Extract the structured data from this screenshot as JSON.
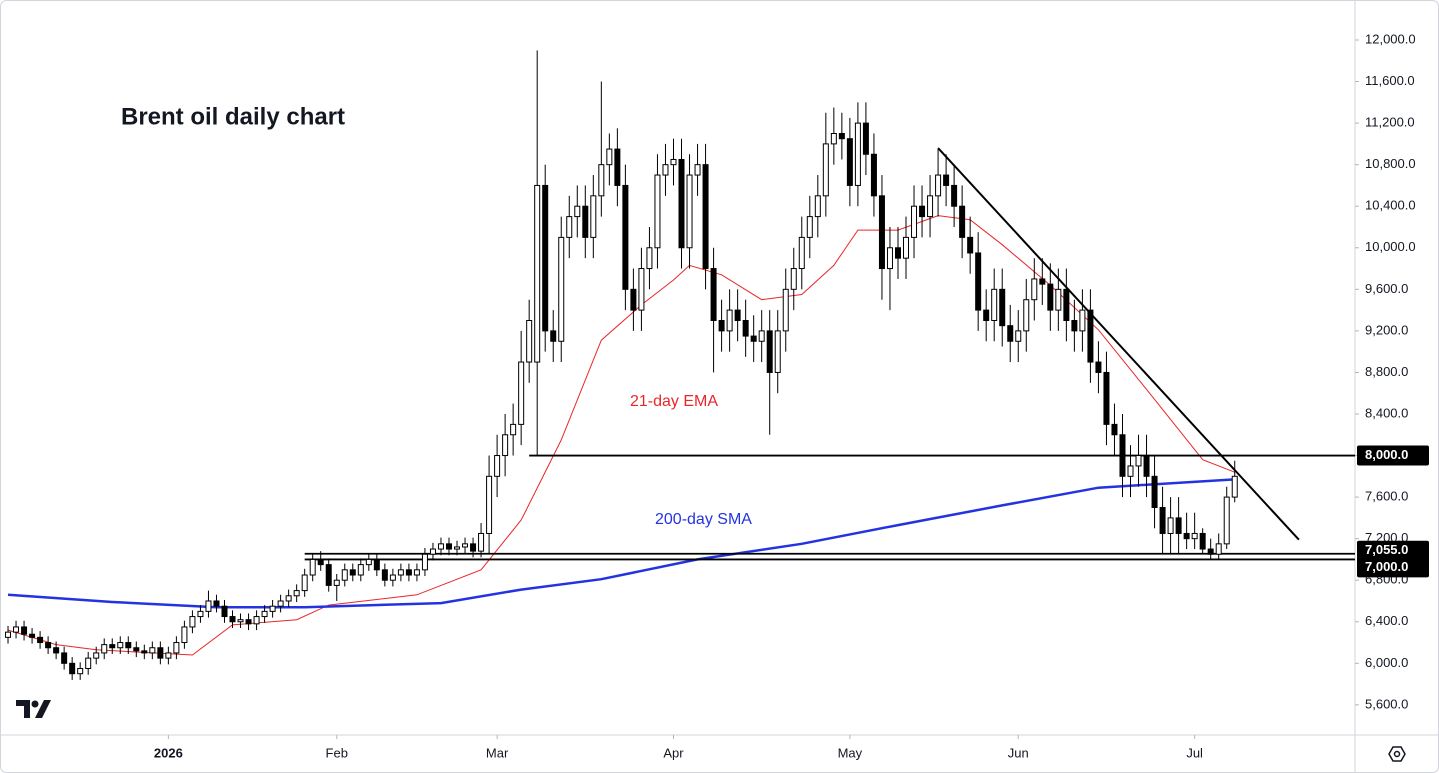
{
  "chart_data": {
    "type": "candlestick",
    "title": "Brent oil daily chart",
    "open": [
      6250,
      6300,
      6350,
      6280,
      6250,
      6200,
      6150,
      6100,
      6000,
      5900,
      5950,
      6050,
      6100,
      6180,
      6150,
      6200,
      6150,
      6120,
      6100,
      6150,
      6050,
      6100,
      6200,
      6350,
      6450,
      6500,
      6600,
      6550,
      6450,
      6400,
      6420,
      6380,
      6450,
      6500,
      6550,
      6600,
      6650,
      6700,
      6850,
      7000,
      6950,
      6750,
      6800,
      6900,
      6850,
      6950,
      7000,
      6900,
      6800,
      6850,
      6900,
      6850,
      6900,
      7050,
      7100,
      7150,
      7100,
      7120,
      7150,
      7080,
      7250,
      7800,
      8000,
      8200,
      8300,
      8900,
      8900,
      10600,
      9200,
      9100,
      10100,
      10300,
      10400,
      10100,
      10500,
      10800,
      10950,
      10600,
      9600,
      9400,
      9800,
      10000,
      10700,
      10800,
      10850,
      10000,
      10700,
      10800,
      9800,
      9300,
      9200,
      9400,
      9300,
      9150,
      9100,
      9200,
      8800,
      9200,
      9600,
      9800,
      10100,
      10300,
      10500,
      11000,
      11100,
      11050,
      10600,
      11200,
      10900,
      10500,
      9800,
      10000,
      9900,
      10100,
      10400,
      10300,
      10500,
      10700,
      10600,
      10400,
      10100,
      9950,
      9400,
      9300,
      9600,
      9250,
      9100,
      9200,
      9500,
      9700,
      9650,
      9400,
      9600,
      9300,
      9200,
      9400,
      8900,
      8800,
      8300,
      8200,
      7800,
      7900,
      8000,
      7800,
      7500,
      7250,
      7400,
      7250,
      7200,
      7250,
      7100,
      7050,
      7150,
      7600
    ],
    "high": [
      6360,
      6410,
      6410,
      6340,
      6310,
      6260,
      6210,
      6160,
      6060,
      6010,
      6110,
      6160,
      6240,
      6240,
      6260,
      6260,
      6210,
      6180,
      6210,
      6210,
      6160,
      6260,
      6410,
      6510,
      6560,
      6700,
      6660,
      6610,
      6510,
      6480,
      6480,
      6510,
      6560,
      6610,
      6660,
      6710,
      6760,
      6910,
      7060,
      7080,
      7010,
      6860,
      6960,
      6960,
      7010,
      7060,
      7060,
      6960,
      6910,
      6960,
      6960,
      6960,
      7110,
      7160,
      7210,
      7210,
      7180,
      7210,
      7210,
      7350,
      8000,
      8200,
      8400,
      8500,
      9200,
      9500,
      11900,
      10800,
      9400,
      10300,
      10500,
      10600,
      10600,
      10700,
      11600,
      11100,
      11150,
      10800,
      9800,
      10000,
      10200,
      10900,
      11000,
      11050,
      11050,
      10900,
      11000,
      11000,
      10000,
      9500,
      9600,
      9600,
      9500,
      9350,
      9400,
      9400,
      9400,
      9800,
      10000,
      10300,
      10500,
      10700,
      11300,
      11350,
      11300,
      11250,
      11400,
      11400,
      11100,
      10700,
      10200,
      10200,
      10300,
      10600,
      10600,
      10700,
      10950,
      10900,
      10800,
      10600,
      10300,
      10150,
      9600,
      9800,
      9800,
      9450,
      9400,
      9700,
      9900,
      9900,
      9850,
      9800,
      9800,
      9500,
      9600,
      9600,
      9100,
      9000,
      8500,
      8400,
      8100,
      8200,
      8200,
      8000,
      7700,
      7600,
      7600,
      7450,
      7450,
      7300,
      7200,
      7250,
      7700,
      7950
    ],
    "low": [
      6190,
      6240,
      6220,
      6190,
      6140,
      6090,
      6040,
      5940,
      5840,
      5840,
      5890,
      5990,
      6040,
      6090,
      6090,
      6090,
      6060,
      6040,
      6040,
      5990,
      5990,
      6040,
      6140,
      6290,
      6390,
      6440,
      6490,
      6390,
      6340,
      6340,
      6320,
      6320,
      6390,
      6440,
      6490,
      6540,
      6590,
      6640,
      6790,
      6890,
      6690,
      6600,
      6740,
      6790,
      6790,
      6890,
      6840,
      6740,
      6740,
      6790,
      6790,
      6790,
      6840,
      6990,
      7040,
      7040,
      7040,
      7060,
      7020,
      7020,
      7050,
      7600,
      7800,
      8000,
      8100,
      8700,
      8000,
      9000,
      8900,
      8900,
      9900,
      10100,
      9900,
      9900,
      10300,
      10600,
      10400,
      9400,
      9200,
      9200,
      9600,
      9800,
      10500,
      10600,
      9800,
      9800,
      10500,
      9600,
      8800,
      9000,
      9000,
      9100,
      8950,
      8900,
      8900,
      8200,
      8600,
      9000,
      9400,
      9600,
      9900,
      10100,
      10300,
      10800,
      10850,
      10400,
      10400,
      10700,
      10300,
      9500,
      9400,
      9700,
      9700,
      9900,
      10100,
      10100,
      10300,
      10400,
      10200,
      9900,
      9750,
      9200,
      9100,
      9100,
      9050,
      8900,
      8900,
      9000,
      9300,
      9450,
      9200,
      9200,
      9100,
      9000,
      9000,
      8700,
      8600,
      8100,
      8000,
      7600,
      7600,
      7700,
      7600,
      7300,
      7050,
      7050,
      7050,
      7100,
      7100,
      7050,
      7000,
      7000,
      7100,
      7550
    ],
    "close": [
      6300,
      6350,
      6280,
      6250,
      6200,
      6150,
      6100,
      6000,
      5900,
      5950,
      6050,
      6100,
      6180,
      6150,
      6200,
      6150,
      6120,
      6100,
      6150,
      6050,
      6100,
      6200,
      6350,
      6450,
      6500,
      6600,
      6550,
      6450,
      6400,
      6420,
      6380,
      6450,
      6500,
      6550,
      6600,
      6650,
      6700,
      6850,
      7000,
      6950,
      6750,
      6800,
      6900,
      6850,
      6950,
      7000,
      6900,
      6800,
      6850,
      6900,
      6850,
      6900,
      7050,
      7100,
      7150,
      7100,
      7120,
      7150,
      7080,
      7250,
      7800,
      8000,
      8200,
      8300,
      8900,
      9300,
      10600,
      9200,
      9100,
      10100,
      10300,
      10400,
      10100,
      10500,
      10800,
      10950,
      10600,
      9600,
      9400,
      9800,
      10000,
      10700,
      10800,
      10850,
      10000,
      10700,
      10800,
      9800,
      9300,
      9200,
      9400,
      9300,
      9150,
      9100,
      9200,
      8800,
      9200,
      9600,
      9800,
      10100,
      10300,
      10500,
      11000,
      11100,
      11050,
      10600,
      11200,
      10900,
      10500,
      9800,
      10000,
      9900,
      10100,
      10400,
      10300,
      10500,
      10700,
      10600,
      10400,
      10100,
      9950,
      9400,
      9300,
      9600,
      9250,
      9100,
      9200,
      9500,
      9700,
      9650,
      9400,
      9600,
      9300,
      9200,
      9400,
      8900,
      8800,
      8300,
      8200,
      7800,
      7900,
      8000,
      7800,
      7500,
      7250,
      7400,
      7250,
      7200,
      7250,
      7100,
      7050,
      7150,
      7600,
      7800
    ],
    "series": [
      {
        "name": "21-day EMA",
        "color": "#e8272a",
        "x": [
          0,
          6,
          11,
          23,
          28,
          36,
          40,
          51,
          59,
          64,
          69,
          74,
          79,
          83,
          85,
          89,
          94,
          99,
          103,
          106,
          111,
          116,
          120,
          124,
          130,
          136,
          143,
          149,
          153
        ],
        "values": [
          6320,
          6180,
          6130,
          6080,
          6370,
          6420,
          6560,
          6660,
          6900,
          7380,
          8150,
          9110,
          9450,
          9690,
          9830,
          9740,
          9500,
          9550,
          9830,
          10170,
          10170,
          10310,
          10270,
          10030,
          9640,
          9210,
          8540,
          7960,
          7840
        ]
      },
      {
        "name": "200-day SMA",
        "color": "#2433e0",
        "x": [
          0,
          13,
          26,
          37,
          54,
          64,
          74,
          86,
          99,
          111,
          124,
          136,
          153
        ],
        "values": [
          6660,
          6590,
          6540,
          6540,
          6580,
          6710,
          6810,
          7000,
          7150,
          7330,
          7520,
          7690,
          7770
        ]
      }
    ],
    "trendline": {
      "x": [
        116,
        161
      ],
      "values": [
        10960,
        7190
      ]
    },
    "levels": [
      {
        "value": 8000,
        "label": "8,000.0",
        "x": [
          65,
          168
        ]
      },
      {
        "value": 7055,
        "label": "7,055.0",
        "x": [
          37,
          168
        ]
      },
      {
        "value": 7000,
        "label": "7,000.0",
        "x": [
          37,
          168
        ]
      }
    ],
    "xlim": [
      -1,
      168
    ],
    "xticks": [
      {
        "value": 20,
        "label": "2026"
      },
      {
        "value": 41,
        "label": "Feb"
      },
      {
        "value": 61,
        "label": "Mar"
      },
      {
        "value": 83,
        "label": "Apr"
      },
      {
        "value": 105,
        "label": "May"
      },
      {
        "value": 126,
        "label": "Jun"
      },
      {
        "value": 148,
        "label": "Jul"
      }
    ],
    "ylim": [
      5310,
      12385
    ],
    "yticks": [
      {
        "value": 5600,
        "label": "5,600.0"
      },
      {
        "value": 6000,
        "label": "6,000.0"
      },
      {
        "value": 6400,
        "label": "6,400.0"
      },
      {
        "value": 6800,
        "label": "6,800.0"
      },
      {
        "value": 7200,
        "label": "7,200.0"
      },
      {
        "value": 7600,
        "label": "7,600.0"
      },
      {
        "value": 8000,
        "label": "8,000.0"
      },
      {
        "value": 8400,
        "label": "8,400.0"
      },
      {
        "value": 8800,
        "label": "8,800.0"
      },
      {
        "value": 9200,
        "label": "9,200.0"
      },
      {
        "value": 9600,
        "label": "9,600.0"
      },
      {
        "value": 10000,
        "label": "10,000.0"
      },
      {
        "value": 10400,
        "label": "10,400.0"
      },
      {
        "value": 10800,
        "label": "10,800.0"
      },
      {
        "value": 11200,
        "label": "11,200.0"
      },
      {
        "value": 11600,
        "label": "11,600.0"
      },
      {
        "value": 12000,
        "label": "12,000.0"
      }
    ]
  }
}
